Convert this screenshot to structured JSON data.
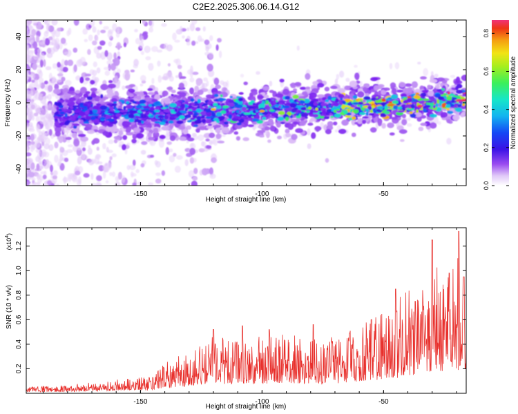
{
  "title": "C2E2.2025.306.06.14.G12",
  "colors": {
    "snr_line": "#e8302c",
    "spectrogram_bg": "#ffffff",
    "colorscale": [
      "#f6eefc",
      "#d9b8f7",
      "#a866f0",
      "#7a1ff0",
      "#3a12e6",
      "#1448f5",
      "#12b4f0",
      "#16e6c8",
      "#3cf05a",
      "#a6ee1e",
      "#f2e414",
      "#f59c12",
      "#ee3416",
      "#f03278"
    ]
  },
  "chart_data": [
    {
      "type": "heatmap",
      "name": "spectrogram",
      "xlabel": "Height of straight line (km)",
      "ylabel": "Frequency (Hz)",
      "xlim": [
        -197,
        -16
      ],
      "ylim": [
        -50,
        50
      ],
      "xticks": [
        -150,
        -100,
        -50
      ],
      "yticks": [
        -40,
        -20,
        0,
        20,
        40
      ],
      "colorbar": {
        "label": "Normalized spectral amplitude",
        "range": [
          0,
          0.87
        ],
        "ticks": [
          0.0,
          0.2,
          0.4,
          0.6,
          0.8
        ]
      },
      "ridge": {
        "description_points_x": [
          -180,
          -150,
          -100,
          -50,
          -20
        ],
        "center_freq_hz": [
          -6,
          -6,
          -4,
          -2,
          2
        ],
        "width_hz": [
          10,
          10,
          10,
          9,
          8
        ],
        "peak_amplitude": [
          0.35,
          0.45,
          0.55,
          0.8,
          0.87
        ]
      }
    },
    {
      "type": "line",
      "name": "snr",
      "xlabel": "Height of straight line (km)",
      "ylabel": "SNR (10 * v/v)",
      "y_scale_label": "(x10",
      "y_scale_exponent": "4",
      "y_scale_suffix": ")",
      "xlim": [
        -197,
        -16
      ],
      "ylim": [
        0,
        1.35
      ],
      "xticks": [
        -150,
        -100,
        -50
      ],
      "yticks": [
        0.2,
        0.4,
        0.6,
        0.8,
        1.0,
        1.2
      ],
      "series": [
        {
          "name": "SNR",
          "envelope_x": [
            -197,
            -180,
            -160,
            -145,
            -140,
            -130,
            -120,
            -110,
            -100,
            -90,
            -80,
            -70,
            -60,
            -50,
            -40,
            -30,
            -20,
            -16
          ],
          "envelope_y": [
            0.04,
            0.05,
            0.09,
            0.12,
            0.22,
            0.3,
            0.42,
            0.4,
            0.4,
            0.42,
            0.4,
            0.4,
            0.5,
            0.6,
            0.75,
            0.9,
            1.0,
            1.0
          ],
          "peaks": [
            [
              -120,
              0.52
            ],
            [
              -108,
              0.55
            ],
            [
              -97,
              0.52
            ],
            [
              -79,
              0.56
            ],
            [
              -64,
              0.49
            ],
            [
              -55,
              0.6
            ],
            [
              -45,
              0.85
            ],
            [
              -37,
              0.75
            ],
            [
              -30,
              1.25
            ],
            [
              -23,
              0.98
            ],
            [
              -19,
              1.32
            ],
            [
              -17,
              0.95
            ]
          ]
        }
      ]
    }
  ]
}
